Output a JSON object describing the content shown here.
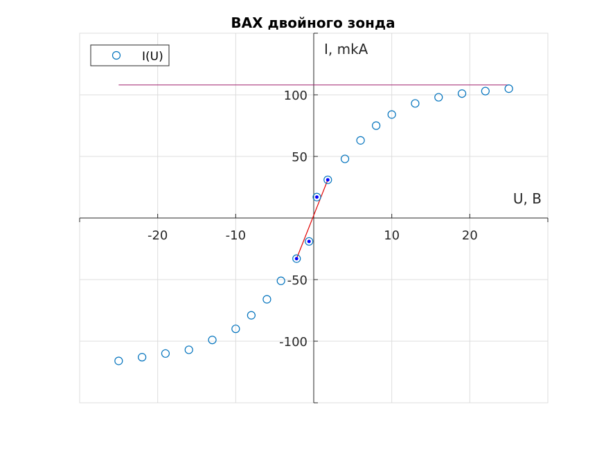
{
  "chart_data": {
    "type": "scatter",
    "title": "ВАХ двойного зонда",
    "xlabel": "U, B",
    "ylabel": "I, mkA",
    "xlim": [
      -30,
      30
    ],
    "ylim": [
      -150,
      150
    ],
    "x_ticks": [
      -20,
      -10,
      10,
      20
    ],
    "y_ticks": [
      -100,
      -50,
      50,
      100
    ],
    "x_tick_labels": [
      "-20",
      "-10",
      "10",
      "20"
    ],
    "y_tick_labels": [
      "-100",
      "-50",
      "50",
      "100"
    ],
    "grid": true,
    "legend_position": "top-left",
    "colors": {
      "marker": "#0072bd",
      "highlight_dot": "#0000ff",
      "saturation_line": "#a0206e",
      "tangent_line": "#e00000",
      "grid": "#dcdcdc",
      "axis": "#262626"
    },
    "series": [
      {
        "name": "I(U)",
        "marker": "circle-open",
        "x": [
          -25,
          -22,
          -19,
          -16,
          -13,
          -10,
          -8,
          -6,
          -4.2,
          -2.2,
          -0.6,
          0.4,
          1.8,
          4,
          6,
          8,
          10,
          13,
          16,
          19,
          22,
          25
        ],
        "y": [
          -116,
          -113,
          -110,
          -107,
          -99,
          -90,
          -79,
          -66,
          -51,
          -33,
          -19,
          17,
          31,
          48,
          63,
          75,
          84,
          93,
          98,
          101,
          103,
          105
        ]
      }
    ],
    "highlighted_points": {
      "x": [
        -2.2,
        -0.6,
        0.4,
        1.8
      ],
      "y": [
        -33,
        -19,
        17,
        31
      ]
    },
    "saturation_line": {
      "x": [
        -25,
        25
      ],
      "y": [
        108,
        108
      ]
    },
    "tangent_line": {
      "x": [
        -2.2,
        1.8
      ],
      "y": [
        -33,
        31
      ]
    }
  }
}
